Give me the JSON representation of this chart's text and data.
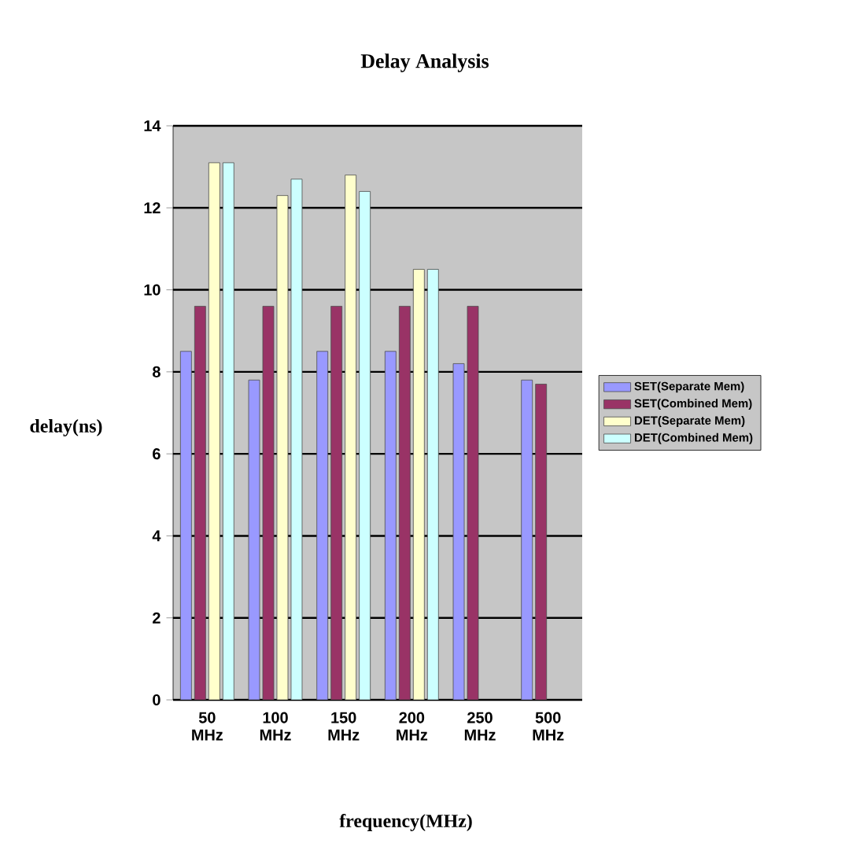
{
  "chart_data": {
    "type": "bar",
    "title": "Delay Analysis",
    "xlabel": "frequency(MHz)",
    "ylabel": "delay(ns)",
    "categories": [
      "50 MHz",
      "100 MHz",
      "150 MHz",
      "200 MHz",
      "250 MHz",
      "500 MHz"
    ],
    "series": [
      {
        "name": "SET(Separate Mem)",
        "color": "#9999ff",
        "values": [
          8.5,
          7.8,
          8.5,
          8.5,
          8.2,
          7.8
        ]
      },
      {
        "name": "SET(Combined Mem)",
        "color": "#993366",
        "values": [
          9.6,
          9.6,
          9.6,
          9.6,
          9.6,
          7.7
        ]
      },
      {
        "name": "DET(Separate Mem)",
        "color": "#ffffcc",
        "values": [
          13.1,
          12.3,
          12.8,
          10.5,
          null,
          null
        ]
      },
      {
        "name": "DET(Combined Mem)",
        "color": "#ccffff",
        "values": [
          13.1,
          12.7,
          12.4,
          10.5,
          null,
          null
        ]
      }
    ],
    "ylim": [
      0,
      14
    ],
    "yticks": [
      0,
      2,
      4,
      6,
      8,
      10,
      12,
      14
    ],
    "grid": "y",
    "legend": "right"
  }
}
